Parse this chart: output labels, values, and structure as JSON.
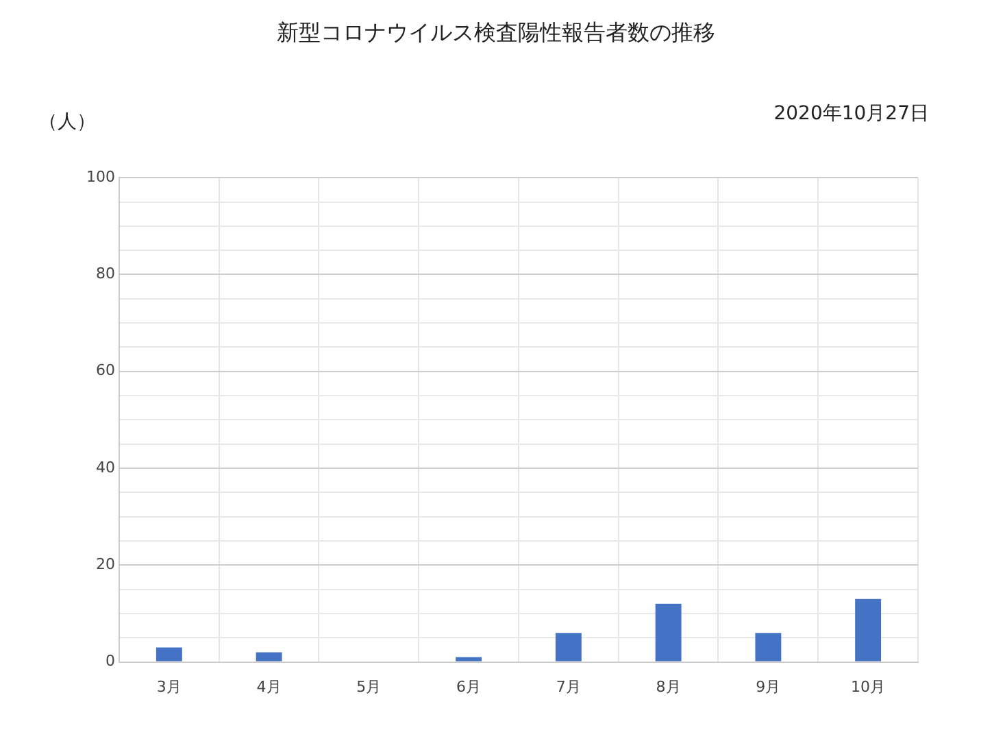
{
  "chart_data": {
    "type": "bar",
    "title": "新型コロナウイルス検査陽性報告者数の推移",
    "ylabel": "（人）",
    "annotations": [
      "2020年10月27日"
    ],
    "categories": [
      "3月",
      "4月",
      "5月",
      "6月",
      "7月",
      "8月",
      "9月",
      "10月"
    ],
    "values": [
      3,
      2,
      0,
      1,
      6,
      12,
      6,
      13
    ],
    "color": "#4472c4",
    "ylim": [
      0,
      100
    ],
    "yticks": [
      0,
      {
        "value": 5,
        "label": null
      },
      {
        "value": 10,
        "label": null
      },
      {
        "value": 15,
        "label": null
      },
      20,
      {
        "value": 25,
        "label": null
      },
      {
        "value": 30,
        "label": null
      },
      {
        "value": 35,
        "label": null
      },
      40,
      {
        "value": 45,
        "label": null
      },
      {
        "value": 50,
        "label": null
      },
      {
        "value": 55,
        "label": null
      },
      60,
      {
        "value": 65,
        "label": null
      },
      {
        "value": 70,
        "label": null
      },
      {
        "value": 75,
        "label": null
      },
      80,
      {
        "value": 85,
        "label": null
      },
      {
        "value": 90,
        "label": null
      },
      {
        "value": 95,
        "label": null
      },
      100
    ],
    "grid": true,
    "legend": false
  }
}
